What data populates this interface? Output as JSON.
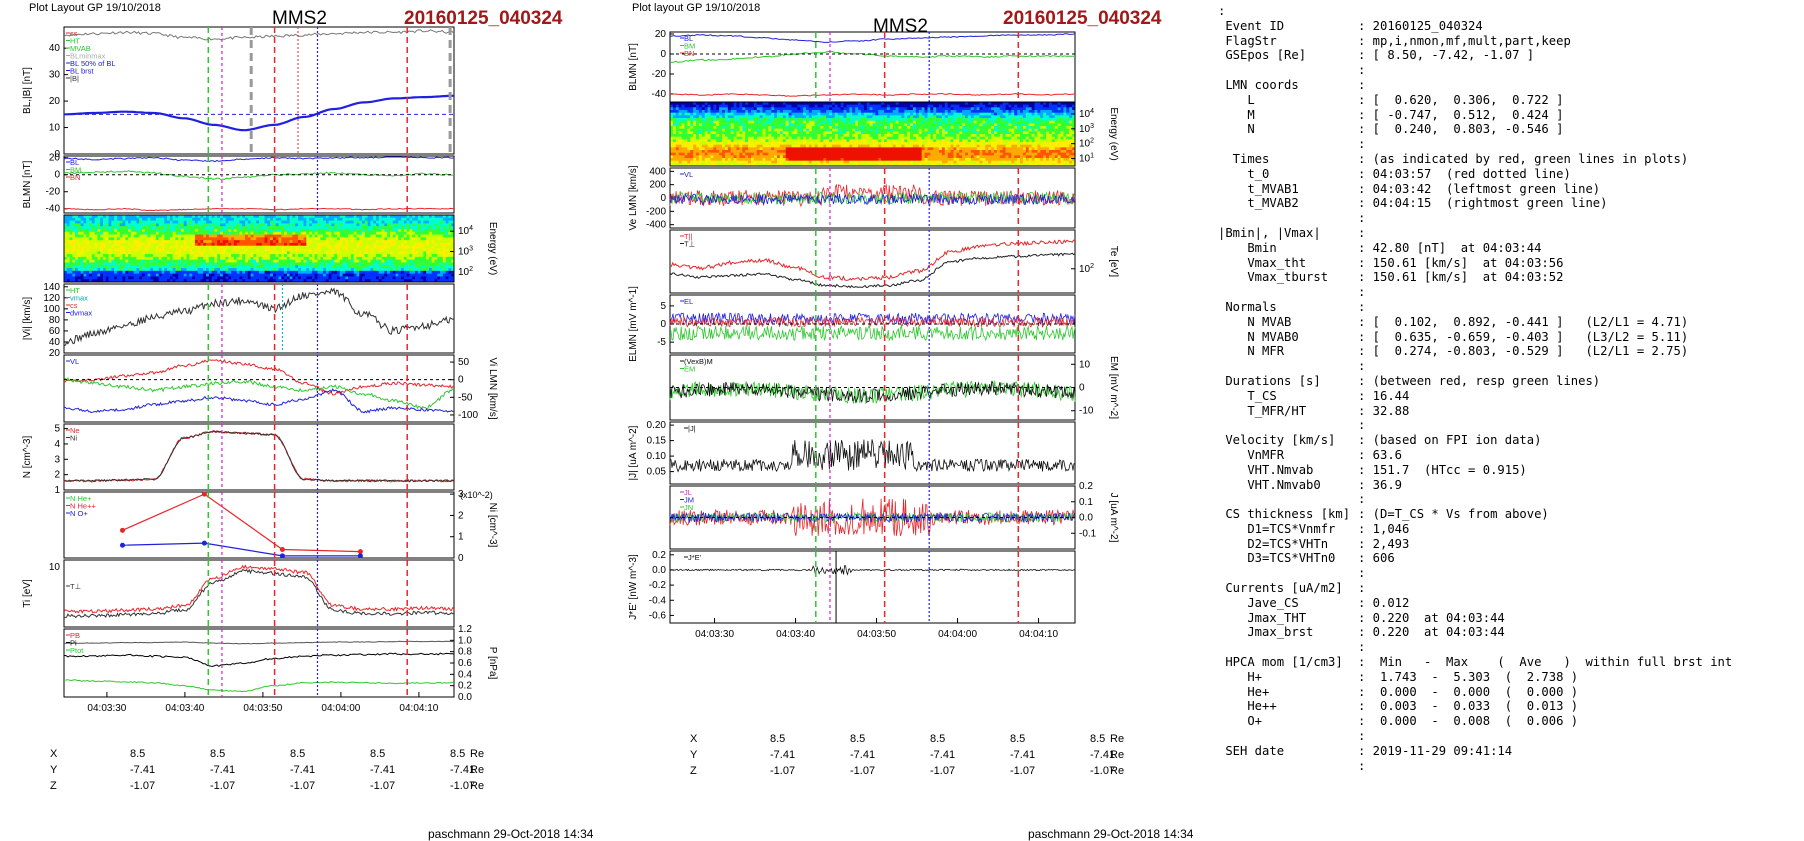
{
  "left_plot": {
    "layout_label": "Plot Layout GP 19/10/2018",
    "spacecraft": "MMS2",
    "event": "20160125_040324",
    "footer": "paschmann 29-Oct-2018 14:34"
  },
  "right_plot": {
    "layout_label": "Plot layout GP 19/10/2018",
    "spacecraft": "MMS2",
    "event": "20160125_040324",
    "footer": "paschmann 29-Oct-2018 14:34"
  },
  "time_ticks": [
    "04:03:30",
    "04:03:40",
    "04:03:50",
    "04:04:00",
    "04:04:10"
  ],
  "position_table": {
    "rows": [
      {
        "label": "X",
        "values": [
          "8.5",
          "8.5",
          "8.5",
          "8.5",
          "8.5"
        ],
        "unit": "Re"
      },
      {
        "label": "Y",
        "values": [
          "-7.41",
          "-7.41",
          "-7.41",
          "-7.41",
          "-7.41"
        ],
        "unit": "Re"
      },
      {
        "label": "Z",
        "values": [
          "-1.07",
          "-1.07",
          "-1.07",
          "-1.07",
          "-1.07"
        ],
        "unit": "Re"
      }
    ]
  },
  "colors": {
    "red": "#e8262b",
    "green": "#2ec82e",
    "blue": "#2020e0",
    "magenta": "#d020d0",
    "black": "#000000",
    "gray": "#888888",
    "event_red": "#a01818"
  },
  "chart_data": [
    {
      "type": "line",
      "panel": "left-B",
      "ylabel": "BL,|B| [nT]",
      "ylim": [
        0,
        48
      ],
      "yticks": [
        "0",
        "10",
        "20",
        "30",
        "40"
      ],
      "legend": [
        "cs",
        "HT",
        "MVAB",
        "BLminmax",
        "BL 50% of BL",
        "BL brst",
        "|B|"
      ],
      "series": [
        {
          "name": "|B|",
          "values": [
            45,
            45.5,
            46,
            45.5,
            44,
            43.5,
            44,
            44.5,
            45,
            45.5,
            46,
            46,
            46.5,
            46
          ]
        },
        {
          "name": "BL brst",
          "values": [
            15,
            15.5,
            16,
            15.5,
            13.5,
            11,
            9,
            11,
            14,
            17,
            19.5,
            21,
            21.5,
            22
          ]
        }
      ],
      "hline": 15
    },
    {
      "type": "line",
      "panel": "left-BLMN",
      "ylabel": "BLMN [nT]",
      "ylim": [
        -45,
        22
      ],
      "yticks": [
        "20",
        "0",
        "-20",
        "-40"
      ],
      "legend": [
        "BL",
        "BM",
        "BN"
      ]
    },
    {
      "type": "heatmap",
      "panel": "left-spec",
      "ylabel": "Energy (eV)",
      "yticks": [
        "10^4",
        "10^3",
        "10^2"
      ]
    },
    {
      "type": "line",
      "panel": "left-Vi",
      "ylabel": "|Vi| [km/s]",
      "ylim": [
        20,
        145
      ],
      "yticks": [
        "140",
        "120",
        "100",
        "80",
        "60",
        "40",
        "20"
      ],
      "legend": [
        "HT",
        "vmax",
        "cs",
        "dvmax"
      ]
    },
    {
      "type": "line",
      "panel": "left-ViLMN",
      "ylabel": "Vi LMN [km/s]",
      "ylim": [
        -120,
        70
      ],
      "yticks": [
        "50",
        "0",
        "-50",
        "-100"
      ],
      "legend": [
        "VL"
      ]
    },
    {
      "type": "line",
      "panel": "left-N",
      "ylabel": "N [cm^-3]",
      "ylim": [
        1,
        5.3
      ],
      "yticks": [
        "5",
        "4",
        "3",
        "2",
        "1"
      ],
      "legend": [
        "Ne",
        "Ni"
      ],
      "series": [
        {
          "name": "Ni",
          "values": [
            1.6,
            1.6,
            1.65,
            1.7,
            4.4,
            4.8,
            4.7,
            4.6,
            1.7,
            1.6,
            1.6,
            1.6,
            1.6,
            1.6
          ]
        }
      ]
    },
    {
      "type": "line",
      "panel": "left-Nhpca",
      "ylabel": "Ni [cm^-3]",
      "ylim": [
        0,
        3.1
      ],
      "yticks": [
        "3",
        "2",
        "1",
        "0"
      ],
      "legend": [
        "N He+",
        "N He++",
        "N O+"
      ],
      "scale_label": "(x10^-2)",
      "series": [
        {
          "name": "N He++",
          "x": [
            0.15,
            0.36,
            0.56,
            0.76
          ],
          "values": [
            1.3,
            3.0,
            0.4,
            0.3
          ]
        },
        {
          "name": "N O+",
          "x": [
            0.15,
            0.36,
            0.56,
            0.76
          ],
          "values": [
            0.6,
            0.7,
            0.1,
            0.1
          ]
        }
      ]
    },
    {
      "type": "line",
      "panel": "left-Ti",
      "ylabel": "Ti [eV]",
      "yticks": [
        "10^3"
      ],
      "legend": [
        "T⊥"
      ]
    },
    {
      "type": "line",
      "panel": "left-P",
      "ylabel": "P [nPa]",
      "ylim": [
        0,
        1.2
      ],
      "yticks": [
        "1.2",
        "1.0",
        "0.8",
        "0.6",
        "0.4",
        "0.2",
        "0.0"
      ],
      "legend": [
        "PB",
        "Pi",
        "Ptot"
      ]
    },
    {
      "type": "line",
      "panel": "right-BLMN",
      "ylabel": "BLMN [nT]",
      "ylim": [
        -48,
        22
      ],
      "yticks": [
        "20",
        "0",
        "-20",
        "-40"
      ],
      "legend": [
        "BL",
        "BM",
        "BN"
      ]
    },
    {
      "type": "heatmap",
      "panel": "right-spec",
      "ylabel": "Energy (eV)",
      "yticks": [
        "10^4",
        "10^3",
        "10^2",
        "10^1"
      ]
    },
    {
      "type": "line",
      "panel": "right-Ve",
      "ylabel": "Ve LMN [km/s]",
      "ylim": [
        -450,
        450
      ],
      "yticks": [
        "400",
        "200",
        "0",
        "-200",
        "-400"
      ],
      "legend": [
        "VL"
      ]
    },
    {
      "type": "line",
      "panel": "right-Te",
      "ylabel": "Te [eV]",
      "yticks": [
        "10^2"
      ],
      "legend": [
        "T||",
        "T⊥"
      ]
    },
    {
      "type": "line",
      "panel": "right-E",
      "ylabel": "ELMN [mV m^-1]",
      "ylim": [
        -8,
        8
      ],
      "yticks": [
        "5",
        "0",
        "-5"
      ],
      "legend": [
        "EL"
      ]
    },
    {
      "type": "line",
      "panel": "right-EM",
      "ylabel": "EM [mV m^-2]",
      "ylim": [
        -14,
        14
      ],
      "yticks": [
        "10",
        "0",
        "-10"
      ],
      "legend": [
        "(VexB)M",
        "EM"
      ]
    },
    {
      "type": "line",
      "panel": "right-J",
      "ylabel": "|J| [uA m^-2]",
      "ylim": [
        0.01,
        0.21
      ],
      "yticks": [
        "0.20",
        "0.15",
        "0.10",
        "0.05"
      ],
      "legend": [
        "|J|"
      ]
    },
    {
      "type": "line",
      "panel": "right-JLMN",
      "ylabel": "J [uA m^-2]",
      "ylim": [
        -0.2,
        0.2
      ],
      "yticks": [
        "0.2",
        "0.1",
        "0.0",
        "-0.1"
      ],
      "legend": [
        "JL",
        "JM",
        "JN"
      ]
    },
    {
      "type": "line",
      "panel": "right-JE",
      "ylabel": "J*E' [nW m^-3]",
      "ylim": [
        -0.7,
        0.25
      ],
      "yticks": [
        "0.2",
        "0.0",
        "-0.2",
        "-0.4",
        "-0.6"
      ],
      "legend": [
        "J*E'"
      ]
    }
  ],
  "info": {
    "lines": [
      {
        "k": ":",
        "v": ""
      },
      {
        "k": " Event ID",
        "v": ": 20160125_040324"
      },
      {
        "k": " FlagStr",
        "v": ": mp,i,nmon,mf,mult,part,keep"
      },
      {
        "k": " GSEpos [Re]",
        "v": ": [ 8.50, -7.42, -1.07 ]"
      },
      {
        "k": "",
        "v": ":"
      },
      {
        "k": " LMN coords",
        "v": ":"
      },
      {
        "k": "    L",
        "v": ": [  0.620,  0.306,  0.722 ]"
      },
      {
        "k": "    M",
        "v": ": [ -0.747,  0.512,  0.424 ]"
      },
      {
        "k": "    N",
        "v": ": [  0.240,  0.803, -0.546 ]"
      },
      {
        "k": "",
        "v": ":"
      },
      {
        "k": "  Times",
        "v": ": (as indicated by red, green lines in plots)"
      },
      {
        "k": "    t_0",
        "v": ": 04:03:57  (red dotted line)"
      },
      {
        "k": "    t_MVAB1",
        "v": ": 04:03:42  (leftmost green line)"
      },
      {
        "k": "    t_MVAB2",
        "v": ": 04:04:15  (rightmost green line)"
      },
      {
        "k": "",
        "v": ":"
      },
      {
        "k": "|Bmin|, |Vmax|",
        "v": ":"
      },
      {
        "k": "    Bmin",
        "v": ": 42.80 [nT]  at 04:03:44"
      },
      {
        "k": "    Vmax_tht",
        "v": ": 150.61 [km/s]  at 04:03:56"
      },
      {
        "k": "    Vmax_tburst",
        "v": ": 150.61 [km/s]  at 04:03:52"
      },
      {
        "k": "",
        "v": ":"
      },
      {
        "k": " Normals",
        "v": ":"
      },
      {
        "k": "    N MVAB",
        "v": ": [  0.102,  0.892, -0.441 ]   (L2/L1 = 4.71)"
      },
      {
        "k": "    N MVAB0",
        "v": ": [  0.635, -0.659, -0.403 ]   (L3/L2 = 5.11)"
      },
      {
        "k": "    N MFR",
        "v": ": [  0.274, -0.803, -0.529 ]   (L2/L1 = 2.75)"
      },
      {
        "k": "",
        "v": ":"
      },
      {
        "k": " Durations [s]",
        "v": ": (between red, resp green lines)"
      },
      {
        "k": "    T_CS",
        "v": ": 16.44"
      },
      {
        "k": "    T_MFR/HT",
        "v": ": 32.88"
      },
      {
        "k": "",
        "v": ":"
      },
      {
        "k": " Velocity [km/s]",
        "v": ": (based on FPI ion data)"
      },
      {
        "k": "    VnMFR",
        "v": ": 63.6"
      },
      {
        "k": "    VHT.Nmvab",
        "v": ": 151.7  (HTcc = 0.915)"
      },
      {
        "k": "    VHT.Nmvab0",
        "v": ": 36.9"
      },
      {
        "k": "",
        "v": ":"
      },
      {
        "k": " CS thickness [km]",
        "v": ": (D=T_CS * Vs from above)"
      },
      {
        "k": "    D1=TCS*Vnmfr",
        "v": ": 1,046"
      },
      {
        "k": "    D2=TCS*VHTn",
        "v": ": 2,493"
      },
      {
        "k": "    D3=TCS*VHTn0",
        "v": ": 606"
      },
      {
        "k": "",
        "v": ":"
      },
      {
        "k": " Currents [uA/m2]",
        "v": ":"
      },
      {
        "k": "    Jave_CS",
        "v": ": 0.012"
      },
      {
        "k": "    Jmax_THT",
        "v": ": 0.220  at 04:03:44"
      },
      {
        "k": "    Jmax_brst",
        "v": ": 0.220  at 04:03:44"
      },
      {
        "k": "",
        "v": ":"
      },
      {
        "k": " HPCA mom [1/cm3]",
        "v": ":  Min   -  Max    (  Ave   )  within full brst int"
      },
      {
        "k": "    H+",
        "v": ":  1.743  -  5.303  (  2.738 )"
      },
      {
        "k": "    He+",
        "v": ":  0.000  -  0.000  (  0.000 )"
      },
      {
        "k": "    He++",
        "v": ":  0.003  -  0.033  (  0.013 )"
      },
      {
        "k": "    O+",
        "v": ":  0.000  -  0.008  (  0.006 )"
      },
      {
        "k": "",
        "v": ":"
      },
      {
        "k": " SEH date",
        "v": ": 2019-11-29 09:41:14"
      },
      {
        "k": "",
        "v": ":"
      }
    ]
  }
}
